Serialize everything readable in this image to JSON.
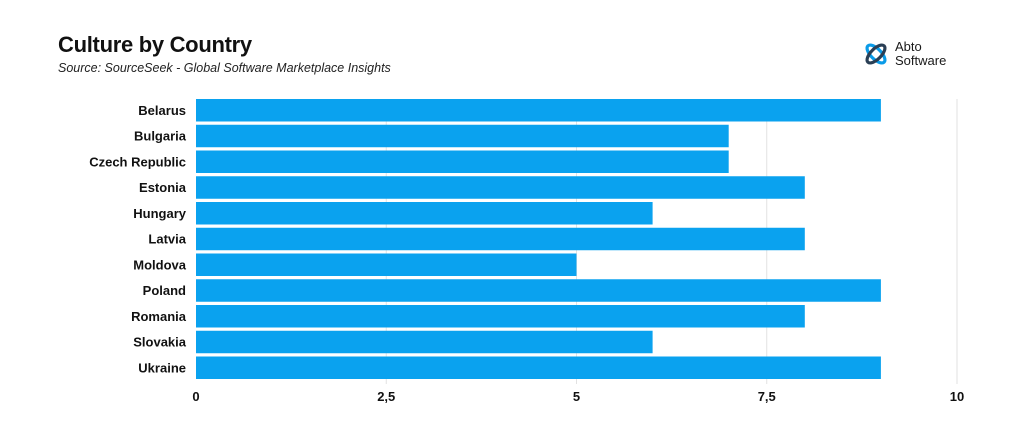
{
  "header": {
    "title": "Culture by Country",
    "subtitle": "Source: SourceSeek - Global Software Marketplace Insights"
  },
  "logo": {
    "icon": "abto-logo-icon",
    "line1": "Abto",
    "line2": "Software",
    "color": "#0a9be8"
  },
  "colors": {
    "bar": "#0aa2ef",
    "grid": "#e2e2e2"
  },
  "chart_data": {
    "type": "bar",
    "orientation": "horizontal",
    "title": "Culture by Country",
    "subtitle": "Source: SourceSeek - Global Software Marketplace Insights",
    "xlabel": "",
    "ylabel": "",
    "categories": [
      "Belarus",
      "Bulgaria",
      "Czech Republic",
      "Estonia",
      "Hungary",
      "Latvia",
      "Moldova",
      "Poland",
      "Romania",
      "Slovakia",
      "Ukraine"
    ],
    "values": [
      9,
      7,
      7,
      8,
      6,
      8,
      5,
      9,
      8,
      6,
      9
    ],
    "xlim": [
      0,
      10
    ],
    "ticks": [
      0,
      2.5,
      5,
      7.5,
      10
    ],
    "tick_labels": [
      "0",
      "2,5",
      "5",
      "7,5",
      "10"
    ],
    "grid": true,
    "legend": "none"
  }
}
